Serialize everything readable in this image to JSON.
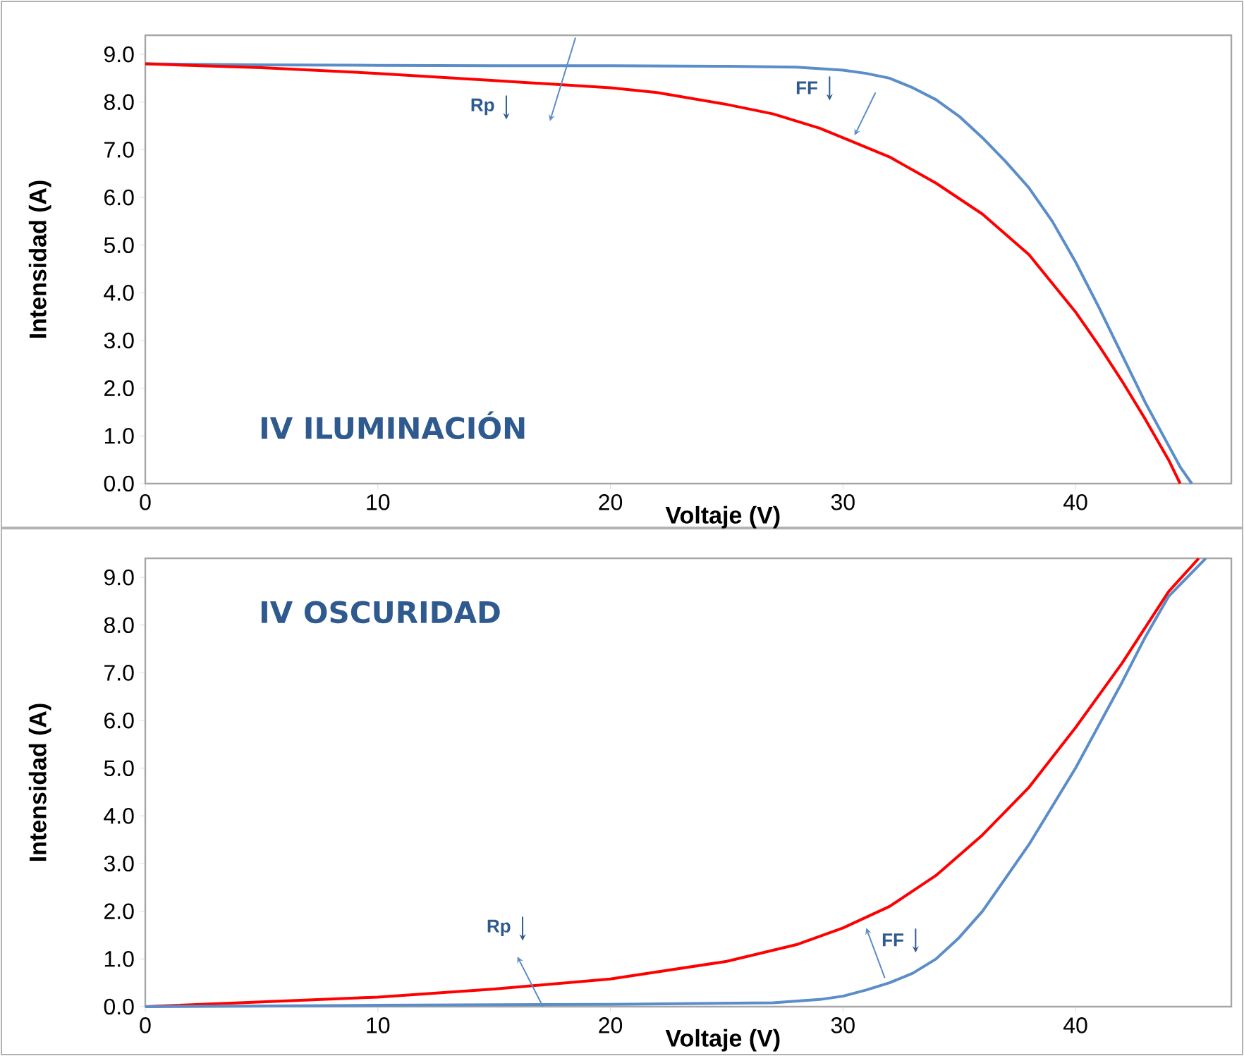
{
  "chart_data": [
    {
      "type": "line",
      "title": "IV ILUMINACIÓN",
      "xlabel": "Voltaje (V)",
      "ylabel": "Intensidad (A)",
      "marker": "none",
      "xlim": [
        0,
        46.7
      ],
      "ylim": [
        0,
        9.4
      ],
      "xticks": [
        0,
        10,
        20,
        30,
        40
      ],
      "yticks": [
        {
          "value": 0,
          "label": "0.0"
        },
        {
          "value": 1,
          "label": "1.0"
        },
        {
          "value": 2,
          "label": "2.0"
        },
        {
          "value": 3,
          "label": "3.0"
        },
        {
          "value": 4,
          "label": "4.0"
        },
        {
          "value": 5,
          "label": "5.0"
        },
        {
          "value": 6,
          "label": "6.0"
        },
        {
          "value": 7,
          "label": "7.0"
        },
        {
          "value": 8,
          "label": "8.0"
        },
        {
          "value": 9,
          "label": "9.0"
        }
      ],
      "annotations": [
        "Rp",
        "FF"
      ],
      "series": [
        {
          "color": "#5b8dc9",
          "x": [
            0,
            5,
            10,
            15,
            20,
            25,
            28,
            30,
            31,
            32,
            33,
            34,
            35,
            36,
            37,
            38,
            39,
            40,
            41,
            42,
            43,
            44,
            44.5,
            45
          ],
          "values": [
            8.8,
            8.78,
            8.77,
            8.76,
            8.76,
            8.75,
            8.73,
            8.67,
            8.6,
            8.5,
            8.3,
            8.05,
            7.7,
            7.25,
            6.75,
            6.2,
            5.5,
            4.65,
            3.7,
            2.7,
            1.7,
            0.8,
            0.35,
            0
          ]
        },
        {
          "color": "#ff0000",
          "x": [
            0,
            5,
            10,
            15,
            20,
            22,
            25,
            27,
            29,
            30,
            32,
            34,
            36,
            38,
            40,
            41,
            42,
            43,
            44,
            44.5
          ],
          "values": [
            8.8,
            8.72,
            8.6,
            8.45,
            8.3,
            8.2,
            7.95,
            7.75,
            7.45,
            7.25,
            6.85,
            6.3,
            5.65,
            4.8,
            3.6,
            2.9,
            2.15,
            1.35,
            0.5,
            0
          ]
        }
      ]
    },
    {
      "type": "line",
      "title": "IV OSCURIDAD",
      "xlabel": "Voltaje (V)",
      "ylabel": "Intensidad (A)",
      "marker": "none",
      "xlim": [
        0,
        46.7
      ],
      "ylim": [
        0,
        9.4
      ],
      "xticks": [
        0,
        10,
        20,
        30,
        40
      ],
      "yticks": [
        {
          "value": 0,
          "label": "0.0"
        },
        {
          "value": 1,
          "label": "1.0"
        },
        {
          "value": 2,
          "label": "2.0"
        },
        {
          "value": 3,
          "label": "3.0"
        },
        {
          "value": 4,
          "label": "4.0"
        },
        {
          "value": 5,
          "label": "5.0"
        },
        {
          "value": 6,
          "label": "6.0"
        },
        {
          "value": 7,
          "label": "7.0"
        },
        {
          "value": 8,
          "label": "8.0"
        },
        {
          "value": 9,
          "label": "9.0"
        }
      ],
      "annotations": [
        {
          "text": "Rp",
          "x": 16.65,
          "y": 0.44
        },
        {
          "text": "FF",
          "x": 31,
          "y": 1.87
        }
      ],
      "series": [
        {
          "color": "#ff0000",
          "x": [
            0,
            5,
            10,
            15,
            20,
            25,
            28,
            30,
            32,
            34,
            36,
            38,
            40,
            42,
            44,
            45.3
          ],
          "values": [
            0,
            0.1,
            0.2,
            0.37,
            0.58,
            0.95,
            1.3,
            1.65,
            2.1,
            2.75,
            3.6,
            4.6,
            5.85,
            7.2,
            8.7,
            9.4
          ]
        },
        {
          "color": "#5b8dc9",
          "x": [
            0,
            10,
            20,
            27,
            29,
            30,
            31,
            32,
            33,
            34,
            35,
            36,
            37,
            38,
            39,
            40,
            41,
            42,
            43,
            44,
            45.6
          ],
          "values": [
            0,
            0.03,
            0.05,
            0.08,
            0.15,
            0.22,
            0.35,
            0.5,
            0.7,
            1.0,
            1.45,
            2.0,
            2.7,
            3.4,
            4.2,
            5.0,
            5.9,
            6.8,
            7.75,
            8.6,
            9.4
          ]
        }
      ]
    }
  ]
}
